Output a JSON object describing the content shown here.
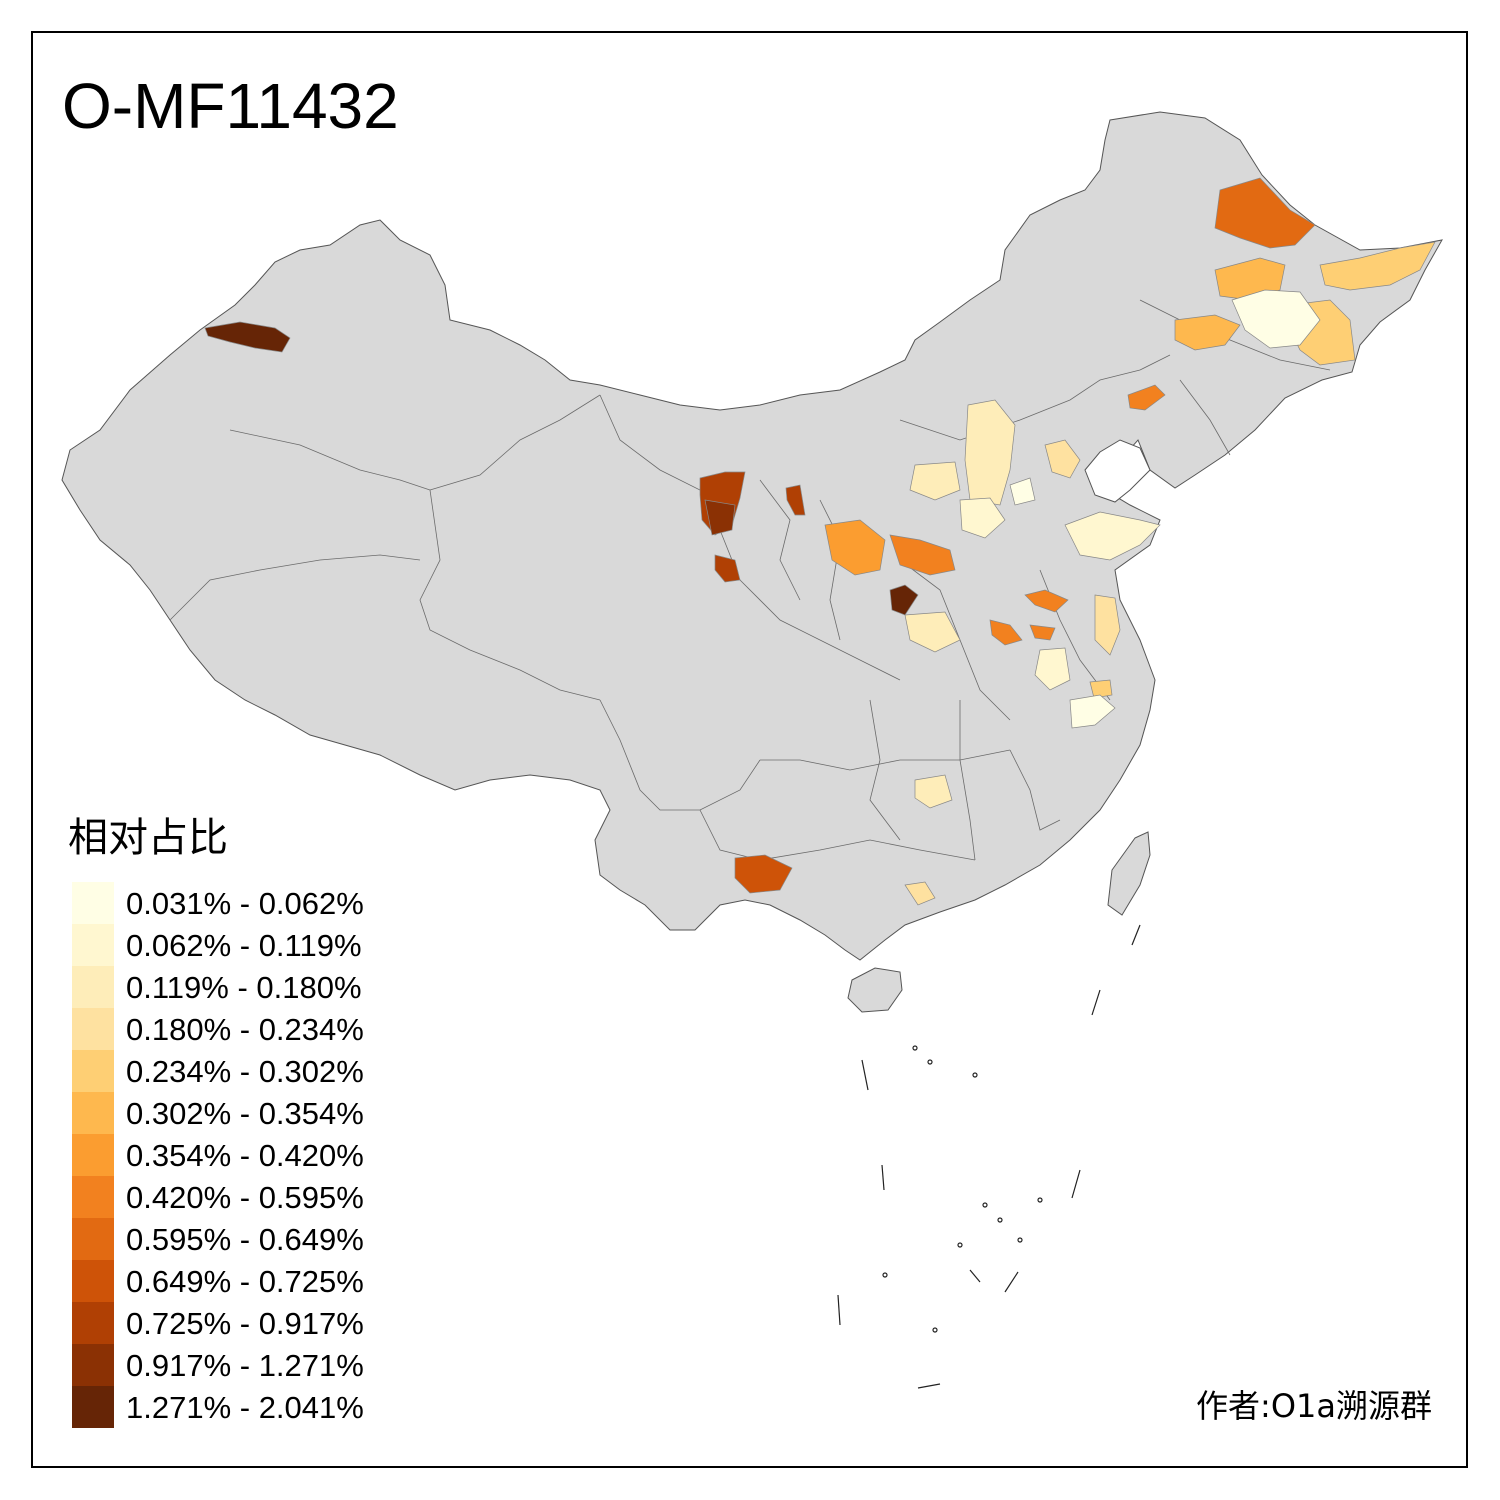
{
  "title": "O-MF11432",
  "legend": {
    "title": "相对占比",
    "items": [
      {
        "label": "0.031% - 0.062%",
        "color": "#FFFEE5"
      },
      {
        "label": "0.062% - 0.119%",
        "color": "#FFF7D0"
      },
      {
        "label": "0.119% - 0.180%",
        "color": "#FEEDB9"
      },
      {
        "label": "0.180% - 0.234%",
        "color": "#FEE1A0"
      },
      {
        "label": "0.234% - 0.302%",
        "color": "#FECF74"
      },
      {
        "label": "0.302% - 0.354%",
        "color": "#FEB84E"
      },
      {
        "label": "0.354% - 0.420%",
        "color": "#FB9D30"
      },
      {
        "label": "0.420% - 0.595%",
        "color": "#F2811F"
      },
      {
        "label": "0.595% - 0.649%",
        "color": "#E26A12"
      },
      {
        "label": "0.649% - 0.725%",
        "color": "#CE5308"
      },
      {
        "label": "0.725% - 0.917%",
        "color": "#B04004"
      },
      {
        "label": "0.917% - 1.271%",
        "color": "#8B3104"
      },
      {
        "label": "1.271% - 2.041%",
        "color": "#662506"
      }
    ]
  },
  "credit": "作者:O1a溯源群",
  "map_data": {
    "regions": [
      {
        "class": 12,
        "color": "#662506"
      },
      {
        "class": 10,
        "color": "#B04004"
      },
      {
        "class": 10,
        "color": "#B04004"
      },
      {
        "class": 10,
        "color": "#B04004"
      },
      {
        "class": 11,
        "color": "#8B3104"
      },
      {
        "class": 9,
        "color": "#CE5308"
      },
      {
        "class": 12,
        "color": "#662506"
      },
      {
        "class": 8,
        "color": "#E26A12"
      },
      {
        "class": 7,
        "color": "#F2811F"
      },
      {
        "class": 7,
        "color": "#F2811F"
      },
      {
        "class": 7,
        "color": "#F2811F"
      },
      {
        "class": 7,
        "color": "#F2811F"
      },
      {
        "class": 7,
        "color": "#F2811F"
      },
      {
        "class": 6,
        "color": "#FB9D30"
      },
      {
        "class": 5,
        "color": "#FEB84E"
      },
      {
        "class": 5,
        "color": "#FEB84E"
      },
      {
        "class": 4,
        "color": "#FECF74"
      },
      {
        "class": 4,
        "color": "#FECF74"
      },
      {
        "class": 4,
        "color": "#FECF74"
      },
      {
        "class": 3,
        "color": "#FEE1A0"
      },
      {
        "class": 3,
        "color": "#FEE1A0"
      },
      {
        "class": 3,
        "color": "#FEE1A0"
      },
      {
        "class": 2,
        "color": "#FEEDB9"
      },
      {
        "class": 2,
        "color": "#FEEDB9"
      },
      {
        "class": 2,
        "color": "#FEEDB9"
      },
      {
        "class": 2,
        "color": "#FEEDB9"
      },
      {
        "class": 1,
        "color": "#FFF7D0"
      },
      {
        "class": 1,
        "color": "#FFF7D0"
      },
      {
        "class": 1,
        "color": "#FFF7D0"
      },
      {
        "class": 0,
        "color": "#FFFEE5"
      },
      {
        "class": 0,
        "color": "#FFFEE5"
      },
      {
        "class": 0,
        "color": "#FFFEE5"
      }
    ]
  }
}
